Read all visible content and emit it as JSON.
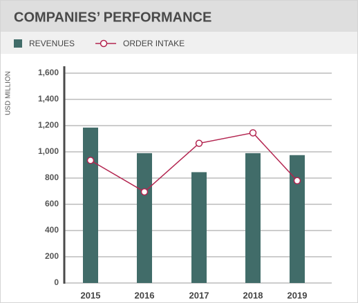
{
  "chart_data": {
    "type": "bar-line",
    "title": "COMPANIES’ PERFORMANCE",
    "y_axis_label": "USD MILLION",
    "categories": [
      "2015",
      "2016",
      "2017",
      "2018",
      "2019"
    ],
    "series": [
      {
        "name": "REVENUES",
        "type": "bar",
        "color": "#416c69",
        "values": [
          1185,
          990,
          845,
          990,
          975
        ]
      },
      {
        "name": "ORDER INTAKE",
        "type": "line",
        "color": "#b3244f",
        "values": [
          935,
          695,
          1065,
          1145,
          780
        ]
      }
    ],
    "ylim": [
      0,
      1600
    ],
    "yticks": [
      0,
      200,
      400,
      600,
      800,
      {
        "value": 1000,
        "label": "1,000"
      },
      {
        "value": 1200,
        "label": "1,200"
      },
      {
        "value": 1400,
        "label": "1,400"
      },
      {
        "value": 1600,
        "label": "1,600"
      }
    ],
    "grid": true
  }
}
